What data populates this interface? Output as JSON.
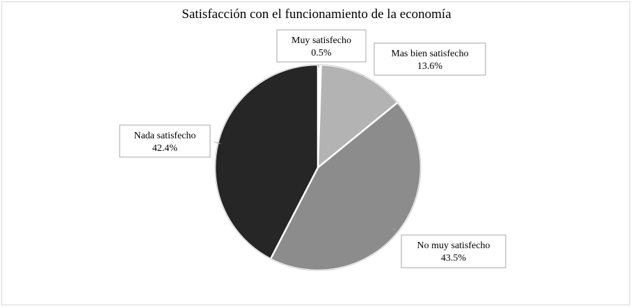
{
  "chart_data": {
    "type": "pie",
    "title": "Satisfacción con el funcionamiento de la economía",
    "slices": [
      {
        "label": "Muy satisfecho",
        "value": 0.5,
        "display": "0.5%",
        "color": "#ffffff"
      },
      {
        "label": "Mas bien satisfecho",
        "value": 13.6,
        "display": "13.6%",
        "color": "#b3b3b3"
      },
      {
        "label": "No muy satisfecho",
        "value": 43.5,
        "display": "43.5%",
        "color": "#8c8c8c"
      },
      {
        "label": "Nada satisfecho",
        "value": 42.4,
        "display": "42.4%",
        "color": "#262626"
      }
    ],
    "legend": "none",
    "data_labels": "callouts"
  }
}
